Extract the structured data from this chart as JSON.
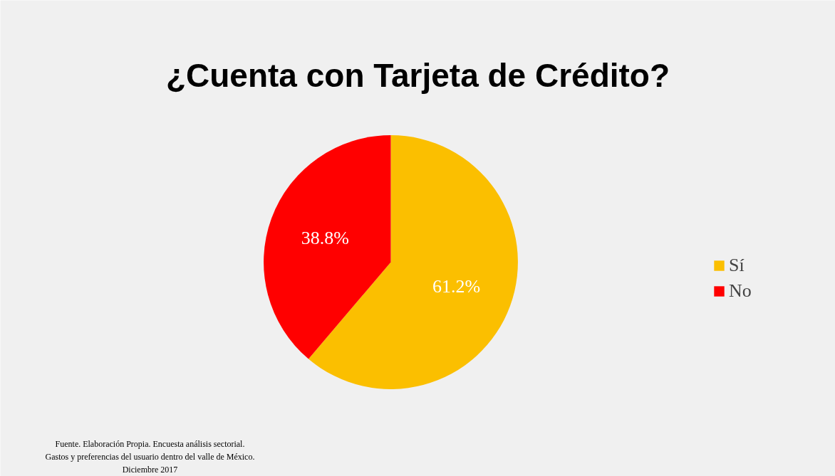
{
  "chart_data": {
    "type": "pie",
    "title": "¿Cuenta con Tarjeta de Crédito?",
    "categories": [
      "Sí",
      "No"
    ],
    "values": [
      61.2,
      38.8
    ],
    "colors": [
      "#fbbf00",
      "#ff0000"
    ],
    "value_labels": [
      "61.2%",
      "38.8%"
    ],
    "legend": "right",
    "annotations": [
      "Fuente. Elaboración Propia. Encuesta análisis sectorial.",
      "Gastos y preferencias del usuario dentro del valle de México.",
      "Diciembre 2017"
    ]
  }
}
